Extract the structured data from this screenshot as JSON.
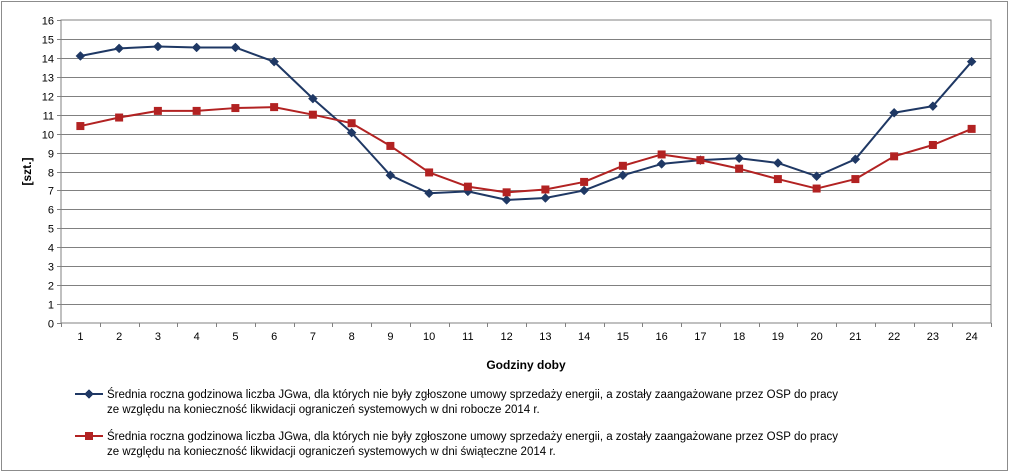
{
  "chart_data": {
    "type": "line",
    "xlabel": "Godziny doby",
    "ylabel": "[szt.]",
    "ylim": [
      0,
      16
    ],
    "yticks": [
      0,
      1,
      2,
      3,
      4,
      5,
      6,
      7,
      8,
      9,
      10,
      11,
      12,
      13,
      14,
      15,
      16
    ],
    "grid": true,
    "legend_position": "bottom",
    "categories": [
      "1",
      "2",
      "3",
      "4",
      "5",
      "6",
      "7",
      "8",
      "9",
      "10",
      "11",
      "12",
      "13",
      "14",
      "15",
      "16",
      "17",
      "18",
      "19",
      "20",
      "21",
      "22",
      "23",
      "24"
    ],
    "series": [
      {
        "name_lines": [
          "Średnia roczna godzinowa liczba JGwa, dla których nie były zgłoszone umowy sprzedaży energii, a zostały zaangażowane przez OSP do pracy",
          "ze względu na konieczność likwidacji ograniczeń systemowych w dni robocze 2014 r."
        ],
        "color": "#1f3864",
        "marker": "diamond",
        "values": [
          14.1,
          14.5,
          14.6,
          14.55,
          14.55,
          13.8,
          11.85,
          10.05,
          7.8,
          6.85,
          6.95,
          6.5,
          6.6,
          7.0,
          7.8,
          8.4,
          8.6,
          8.7,
          8.45,
          7.75,
          8.65,
          11.1,
          11.45,
          13.8
        ]
      },
      {
        "name_lines": [
          "Średnia roczna godzinowa liczba JGwa, dla których nie były zgłoszone umowy sprzedaży energii, a zostały zaangażowane przez OSP do pracy",
          "ze względu na konieczność likwidacji ograniczeń systemowych w dni świąteczne 2014 r."
        ],
        "color": "#b22222",
        "marker": "square",
        "values": [
          10.4,
          10.85,
          11.2,
          11.2,
          11.35,
          11.4,
          11.0,
          10.55,
          9.35,
          7.95,
          7.2,
          6.9,
          7.05,
          7.45,
          8.3,
          8.9,
          8.6,
          8.15,
          7.6,
          7.1,
          7.6,
          8.8,
          9.4,
          10.25
        ]
      }
    ]
  }
}
